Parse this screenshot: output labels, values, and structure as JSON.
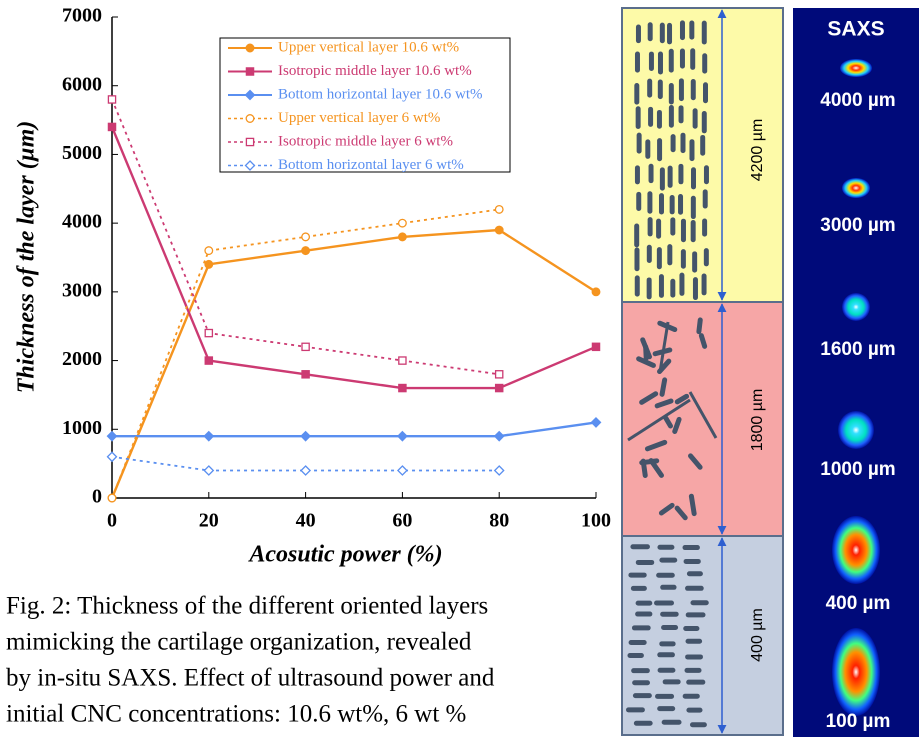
{
  "chart_data": {
    "type": "line",
    "x_label": "Acosutic power (%)",
    "y_label": "Thickness of the layer (µm)",
    "x": [
      0,
      20,
      40,
      60,
      80,
      100
    ],
    "xlim": [
      0,
      100
    ],
    "xticks": [
      0,
      20,
      40,
      60,
      80,
      100
    ],
    "ylim": [
      0,
      7000
    ],
    "yticks": [
      0,
      1000,
      2000,
      3000,
      4000,
      5000,
      6000,
      7000
    ],
    "grid": false,
    "series": [
      {
        "name": "Upper vertical layer 10.6 wt%",
        "color": "#f5941f",
        "marker": "circle",
        "filled": true,
        "dash": false,
        "values": [
          0,
          3400,
          3600,
          3800,
          3900,
          3000
        ]
      },
      {
        "name": "Isotropic middle layer 10.6 wt%",
        "color": "#cc3a72",
        "marker": "square",
        "filled": true,
        "dash": false,
        "values": [
          5400,
          2000,
          1800,
          1600,
          1600,
          2200
        ]
      },
      {
        "name": "Bottom horizontal layer 10.6 wt%",
        "color": "#5a8ff0",
        "marker": "diamond",
        "filled": true,
        "dash": false,
        "values": [
          900,
          900,
          900,
          900,
          900,
          1100
        ]
      },
      {
        "name": "Upper vertical layer 6 wt%",
        "color": "#f5941f",
        "marker": "circle",
        "filled": false,
        "dash": true,
        "values": [
          0,
          3600,
          3800,
          4000,
          4200,
          null
        ]
      },
      {
        "name": "Isotropic middle layer 6 wt%",
        "color": "#cc3a72",
        "marker": "square",
        "filled": false,
        "dash": true,
        "values": [
          5800,
          2400,
          2200,
          2000,
          1800,
          null
        ]
      },
      {
        "name": "Bottom horizontal layer 6 wt%",
        "color": "#5a8ff0",
        "marker": "diamond",
        "filled": false,
        "dash": true,
        "values": [
          600,
          400,
          400,
          400,
          400,
          null
        ]
      }
    ]
  },
  "diagram": {
    "layers": [
      {
        "label": "4200 µm"
      },
      {
        "label": "1800 µm"
      },
      {
        "label": "400 µm"
      }
    ]
  },
  "saxs": {
    "title": "SAXS",
    "labels": [
      "4000 µm",
      "3000 µm",
      "1600 µm",
      "1000 µm",
      "400 µm",
      "100 µm"
    ]
  },
  "caption": [
    "Fig. 2: Thickness of the different oriented layers",
    "mimicking the cartilage organization, revealed",
    "by in-situ SAXS. Effect of ultrasound power and",
    "initial CNC concentrations: 10.6 wt%, 6 wt %"
  ]
}
